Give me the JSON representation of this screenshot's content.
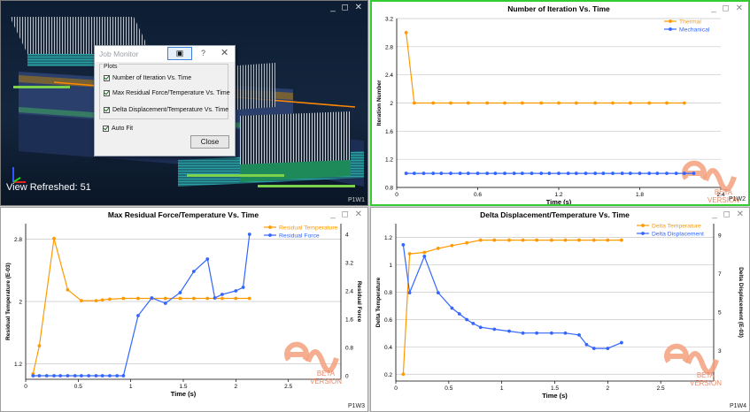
{
  "viewport_3d": {
    "status": "View Refreshed: 51",
    "tag": "P1W1"
  },
  "job_monitor": {
    "title": "Job Monitor",
    "help": "?",
    "group_label": "Plots",
    "options": [
      {
        "label": "Number of Iteration Vs. Time",
        "checked": true
      },
      {
        "label": "Max Residual Force/Temperature Vs. Time",
        "checked": true
      },
      {
        "label": "Delta Displacement/Temperature Vs. Time",
        "checked": true
      }
    ],
    "auto_fit": {
      "label": "Auto Fit",
      "checked": true
    },
    "close_label": "Close"
  },
  "window_controls": "_ ◻ ✕",
  "logo": {
    "beta": "BETA",
    "version": "VERSION"
  },
  "colors": {
    "orange": "#ff9900",
    "blue": "#3366ff",
    "active_border": "#33cc33"
  },
  "charts": {
    "iterations": {
      "tag": "P1W2",
      "chart_data": {
        "type": "line",
        "title": "Number of Iteration Vs. Time",
        "xlabel": "Time (s)",
        "ylabel": "Iteration Number",
        "xlim": [
          0,
          2.4
        ],
        "ylim": [
          0.8,
          3.2
        ],
        "xticks": [
          "0",
          "0.6",
          "1.2",
          "1.8",
          "2.4"
        ],
        "yticks": [
          "0.8",
          "1.2",
          "1.6",
          "2",
          "2.4",
          "2.8",
          "3.2"
        ],
        "legend": "top-right",
        "series": [
          {
            "name": "Thermal",
            "color": "#ff9900",
            "x": [
              0.07,
              0.13,
              0.27,
              0.4,
              0.53,
              0.67,
              0.8,
              0.93,
              1.07,
              1.2,
              1.33,
              1.47,
              1.6,
              1.73,
              1.87,
              2.0,
              2.13
            ],
            "y": [
              3,
              2,
              2,
              2,
              2,
              2,
              2,
              2,
              2,
              2,
              2,
              2,
              2,
              2,
              2,
              2,
              2
            ]
          },
          {
            "name": "Mechanical",
            "color": "#3366ff",
            "x": [
              0.07,
              0.13,
              0.2,
              0.27,
              0.33,
              0.4,
              0.47,
              0.53,
              0.6,
              0.67,
              0.73,
              0.8,
              0.87,
              0.93,
              1.0,
              1.07,
              1.13,
              1.2,
              1.27,
              1.33,
              1.4,
              1.47,
              1.53,
              1.6,
              1.67,
              1.73,
              1.8,
              1.87,
              1.93,
              2.0,
              2.07,
              2.13,
              2.2
            ],
            "y": [
              1,
              1,
              1,
              1,
              1,
              1,
              1,
              1,
              1,
              1,
              1,
              1,
              1,
              1,
              1,
              1,
              1,
              1,
              1,
              1,
              1,
              1,
              1,
              1,
              1,
              1,
              1,
              1,
              1,
              1,
              1,
              1,
              1
            ]
          }
        ]
      }
    },
    "residual": {
      "tag": "P1W3",
      "chart_data": {
        "type": "line",
        "title": "Max Residual Force/Temperature Vs. Time",
        "xlabel": "Time (s)",
        "ylabel": "Residual Temperature (E-03)",
        "y2label": "Residual Force",
        "xlim": [
          0,
          3.0
        ],
        "ylim": [
          1.0,
          3.0
        ],
        "y2lim": [
          -0.1,
          4.3
        ],
        "xticks": [
          "0",
          "0.5",
          "1",
          "1.5",
          "2",
          "2.5"
        ],
        "yticks": [
          "1.2",
          "2",
          "2.8"
        ],
        "y2ticks": [
          "0",
          "0.8",
          "1.6",
          "2.4",
          "3.2",
          "4"
        ],
        "legend": "top-right",
        "series": [
          {
            "name": "Residual Temperature",
            "color": "#ff9900",
            "axis": "left",
            "x": [
              0.07,
              0.13,
              0.27,
              0.4,
              0.53,
              0.67,
              0.73,
              0.8,
              0.93,
              1.07,
              1.2,
              1.33,
              1.47,
              1.6,
              1.73,
              1.87,
              2.0,
              2.13
            ],
            "y": [
              1.07,
              1.43,
              2.81,
              2.15,
              2.01,
              2.01,
              2.02,
              2.03,
              2.04,
              2.04,
              2.04,
              2.04,
              2.04,
              2.04,
              2.04,
              2.04,
              2.04,
              2.04
            ]
          },
          {
            "name": "Residual Force",
            "color": "#3366ff",
            "axis": "right",
            "x": [
              0.07,
              0.13,
              0.2,
              0.27,
              0.33,
              0.4,
              0.47,
              0.53,
              0.6,
              0.67,
              0.73,
              0.8,
              0.87,
              0.93,
              1.07,
              1.2,
              1.33,
              1.47,
              1.6,
              1.73,
              1.8,
              1.87,
              2.0,
              2.07,
              2.13
            ],
            "y": [
              0,
              0,
              0,
              0,
              0,
              0,
              0,
              0,
              0,
              0,
              0,
              0,
              0,
              0,
              1.7,
              2.2,
              2.05,
              2.35,
              2.95,
              3.3,
              2.2,
              2.3,
              2.4,
              2.5,
              4.0
            ]
          }
        ]
      }
    },
    "delta": {
      "tag": "P1W4",
      "chart_data": {
        "type": "line",
        "title": "Delta Displacement/Temperature Vs. Time",
        "xlabel": "Time (s)",
        "ylabel": "Delta Temperature",
        "y2label": "Delta Displacement (E-03)",
        "xlim": [
          0,
          3.0
        ],
        "ylim": [
          0.15,
          1.3
        ],
        "y2lim": [
          1.4,
          9.6
        ],
        "xticks": [
          "0",
          "0.5",
          "1",
          "1.5",
          "2",
          "2.5"
        ],
        "yticks": [
          "0.2",
          "0.4",
          "0.6",
          "0.8",
          "1",
          "1.2"
        ],
        "y2ticks": [
          "3",
          "5",
          "7",
          "9"
        ],
        "legend": "top-right",
        "series": [
          {
            "name": "Delta Temperature",
            "color": "#ff9900",
            "axis": "left",
            "x": [
              0.07,
              0.13,
              0.27,
              0.4,
              0.53,
              0.67,
              0.8,
              0.93,
              1.07,
              1.2,
              1.33,
              1.47,
              1.6,
              1.73,
              1.87,
              2.0,
              2.13
            ],
            "y": [
              0.2,
              1.08,
              1.09,
              1.12,
              1.14,
              1.16,
              1.18,
              1.18,
              1.18,
              1.18,
              1.18,
              1.18,
              1.18,
              1.18,
              1.18,
              1.18,
              1.18
            ]
          },
          {
            "name": "Delta Displacement",
            "color": "#3366ff",
            "axis": "right",
            "x": [
              0.07,
              0.13,
              0.27,
              0.4,
              0.53,
              0.6,
              0.67,
              0.73,
              0.8,
              0.93,
              1.07,
              1.2,
              1.33,
              1.47,
              1.6,
              1.73,
              1.8,
              1.87,
              2.0,
              2.13
            ],
            "y": [
              8.5,
              6.0,
              7.9,
              6.0,
              5.2,
              4.9,
              4.6,
              4.4,
              4.2,
              4.1,
              4.0,
              3.9,
              3.9,
              3.9,
              3.9,
              3.8,
              3.3,
              3.1,
              3.1,
              3.4
            ]
          }
        ]
      }
    }
  }
}
